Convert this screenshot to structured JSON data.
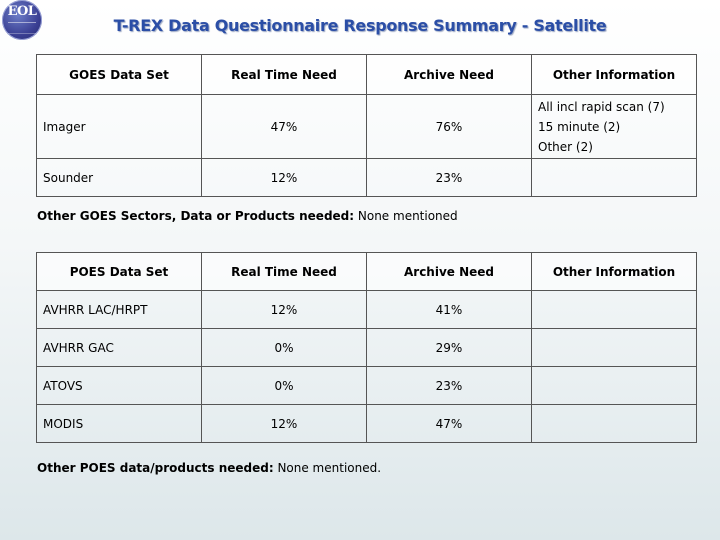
{
  "header": {
    "logo_text": "EOL",
    "title": "T-REX Data Questionnaire Response Summary - Satellite"
  },
  "goes_table": {
    "headers": [
      "GOES Data Set",
      "Real Time Need",
      "Archive Need",
      "Other Information"
    ],
    "rows": [
      {
        "name": "Imager",
        "real_time": "47%",
        "archive": "76%",
        "info": [
          "All incl rapid scan (7)",
          "15 minute (2)",
          "Other (2)"
        ]
      },
      {
        "name": "Sounder",
        "real_time": "12%",
        "archive": "23%",
        "info": []
      }
    ]
  },
  "goes_note": {
    "label": "Other GOES Sectors, Data or Products needed:",
    "value": " None mentioned"
  },
  "poes_table": {
    "headers": [
      "POES Data Set",
      "Real Time Need",
      "Archive Need",
      "Other Information"
    ],
    "rows": [
      {
        "name": "AVHRR LAC/HRPT",
        "real_time": "12%",
        "archive": "41%",
        "info": ""
      },
      {
        "name": "AVHRR GAC",
        "real_time": "0%",
        "archive": "29%",
        "info": ""
      },
      {
        "name": "ATOVS",
        "real_time": "0%",
        "archive": "23%",
        "info": ""
      },
      {
        "name": "MODIS",
        "real_time": "12%",
        "archive": "47%",
        "info": ""
      }
    ]
  },
  "poes_note": {
    "label": "Other POES data/products needed:",
    "value": " None mentioned."
  }
}
